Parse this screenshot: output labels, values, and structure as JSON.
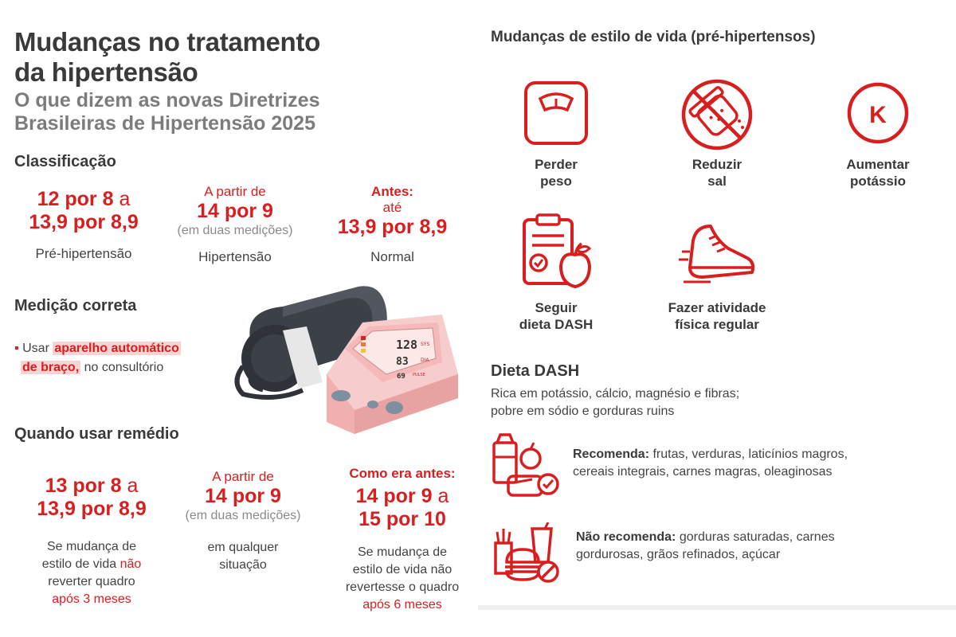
{
  "header": {
    "title_line1": "Mudanças no tratamento",
    "title_line2": "da hipertensão",
    "subtitle_line1": "O que dizem as novas Diretrizes",
    "subtitle_line2": "Brasileiras de Hipertensão 2025"
  },
  "classificacao": {
    "heading": "Classificação",
    "items": [
      {
        "value_line1": "12 por 8",
        "value_conn1": "a",
        "value_line2": "13,9 por 8,9",
        "label": "Pré-hipertensão"
      },
      {
        "prefix": "A partir de",
        "value": "14 por 9",
        "note": "(em duas medições)",
        "label": "Hipertensão"
      },
      {
        "prefix_bold": "Antes:",
        "prefix": "até",
        "value": "13,9 por 8,9",
        "label": "Normal"
      }
    ]
  },
  "medicao": {
    "heading": "Medição correta",
    "bullet_pre": "Usar",
    "bullet_hl1": "aparelho automático",
    "bullet_hl2": "de braço,",
    "bullet_post": "no consultório",
    "monitor_sys": "128",
    "monitor_dia": "83",
    "monitor_pulse": "69",
    "monitor_sys_label": "SYS",
    "monitor_dia_label": "DIA",
    "monitor_pulse_label": "PULSE"
  },
  "remedio": {
    "heading": "Quando usar remédio",
    "items": [
      {
        "value_line1": "13 por 8",
        "value_conn1": "a",
        "value_line2": "13,9 por 8,9",
        "desc_line1": "Se mudança de",
        "desc_line2a": "estilo de vida",
        "desc_line2b": "não",
        "desc_line3": "reverter quadro",
        "desc_line4": "após 3 meses"
      },
      {
        "prefix": "A partir de",
        "value": "14 por 9",
        "note": "(em duas medições)",
        "desc_line1": "em qualquer",
        "desc_line2": "situação"
      },
      {
        "prefix_bold": "Como era antes:",
        "value_line1": "14 por 9",
        "value_conn1": "a",
        "value_line2": "15 por 10",
        "desc_line1": "Se mudança de",
        "desc_line2": "estilo de vida não",
        "desc_line3": "revertesse o quadro",
        "desc_line4": "após 6 meses"
      }
    ]
  },
  "estilo": {
    "heading": "Mudanças de estilo de vida (pré-hipertensos)",
    "items": [
      {
        "icon": "scale-icon",
        "line1": "Perder",
        "line2": "peso"
      },
      {
        "icon": "no-salt-icon",
        "line1": "Reduzir",
        "line2": "sal"
      },
      {
        "icon": "potassium-icon",
        "symbol": "K",
        "line1": "Aumentar",
        "line2": "potássio"
      },
      {
        "icon": "diet-clipboard-icon",
        "line1": "Seguir",
        "line2": "dieta DASH"
      },
      {
        "icon": "sneaker-icon",
        "line1": "Fazer atividade",
        "line2": "física regular"
      }
    ]
  },
  "dash": {
    "heading": "Dieta DASH",
    "desc_line1": "Rica em potássio, cálcio, magnésio e fibras;",
    "desc_line2": "pobre em sódio e gorduras ruins",
    "rec_label": "Recomenda:",
    "rec_line1": "frutas, verduras, laticínios magros,",
    "rec_line2": "cereais integrais, carnes magras, oleaginosas",
    "norec_label": "Não recomenda:",
    "norec_line1": "gorduras saturadas, carnes",
    "norec_line2": "gordurosas, grãos refinados, açúcar"
  },
  "colors": {
    "accent": "#d81e1e",
    "text": "#3a3a3a",
    "muted": "#8a8a8a",
    "highlight": "#f7d3d3"
  }
}
